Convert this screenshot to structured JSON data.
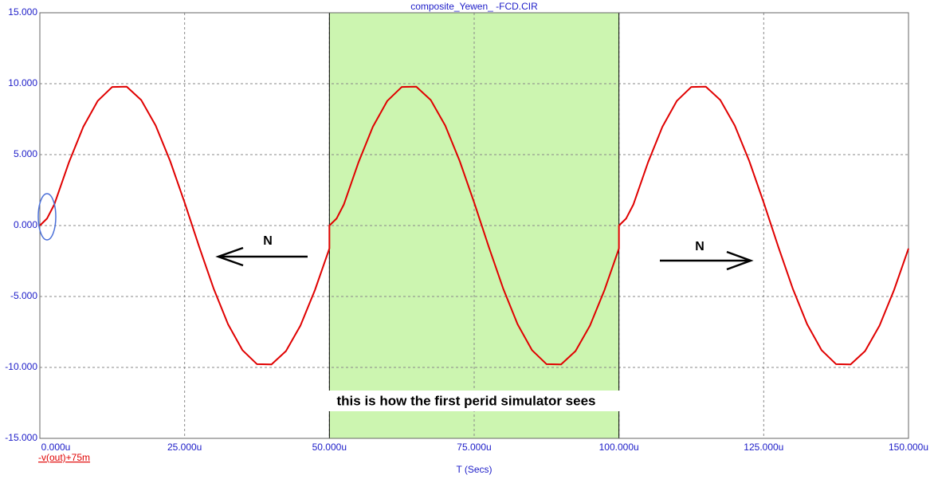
{
  "chart_data": {
    "type": "line",
    "title": "composite_Yewen_      -FCD.CIR",
    "x_label": "T (Secs)",
    "x": [
      0,
      1.25,
      2.5,
      5,
      7.5,
      10,
      12.5,
      15,
      17.5,
      20,
      22.5,
      25,
      27.5,
      30,
      32.5,
      35,
      37.5,
      40,
      42.5,
      45,
      47.5,
      50,
      50,
      51.25,
      52.5,
      55,
      57.5,
      60,
      62.5,
      65,
      67.5,
      70,
      72.5,
      75,
      77.5,
      80,
      82.5,
      85,
      87.5,
      90,
      92.5,
      95,
      97.5,
      100,
      100,
      101.25,
      102.5,
      105,
      107.5,
      110,
      112.5,
      115,
      117.5,
      120,
      122.5,
      125,
      127.5,
      130,
      132.5,
      135,
      137.5,
      140,
      142.5,
      145,
      147.5,
      150
    ],
    "series": [
      {
        "name": "-v(out)+75m",
        "color": "#e00000",
        "values": [
          0,
          0.5,
          1.49,
          4.43,
          6.96,
          8.79,
          9.77,
          9.79,
          8.85,
          7.05,
          4.55,
          1.62,
          -1.48,
          -4.43,
          -6.96,
          -8.79,
          -9.77,
          -9.79,
          -8.85,
          -7.05,
          -4.55,
          -1.62,
          0,
          0.5,
          1.49,
          4.43,
          6.96,
          8.79,
          9.77,
          9.79,
          8.85,
          7.05,
          4.55,
          1.62,
          -1.48,
          -4.43,
          -6.96,
          -8.79,
          -9.77,
          -9.79,
          -8.85,
          -7.05,
          -4.55,
          -1.62,
          0,
          0.5,
          1.49,
          4.43,
          6.96,
          8.79,
          9.77,
          9.79,
          8.85,
          7.05,
          4.55,
          1.62,
          -1.48,
          -4.43,
          -6.96,
          -8.79,
          -9.77,
          -9.79,
          -8.85,
          -7.05,
          -4.55,
          -1.62
        ]
      }
    ],
    "xlim": [
      0,
      150
    ],
    "ylim": [
      -15,
      15
    ],
    "xticks": [
      {
        "value": 0,
        "label": "0.000u"
      },
      {
        "value": 25,
        "label": "25.000u"
      },
      {
        "value": 50,
        "label": "50.000u"
      },
      {
        "value": 75,
        "label": "75.000u"
      },
      {
        "value": 100,
        "label": "100.000u"
      },
      {
        "value": 125,
        "label": "125.000u"
      },
      {
        "value": 150,
        "label": "150.000u"
      }
    ],
    "yticks": [
      {
        "value": -15,
        "label": "-15.000"
      },
      {
        "value": -10,
        "label": "-10.000"
      },
      {
        "value": -5,
        "label": "-5.000"
      },
      {
        "value": 0,
        "label": "0.000"
      },
      {
        "value": 5,
        "label": "5.000"
      },
      {
        "value": 10,
        "label": "10.000"
      },
      {
        "value": 15,
        "label": "15.000"
      }
    ],
    "grid": true,
    "highlight": {
      "xlim": [
        50,
        100
      ],
      "color": "#ccf5b0"
    },
    "annotations": [
      "N",
      "N",
      "this is how the first perid simulator sees"
    ]
  }
}
